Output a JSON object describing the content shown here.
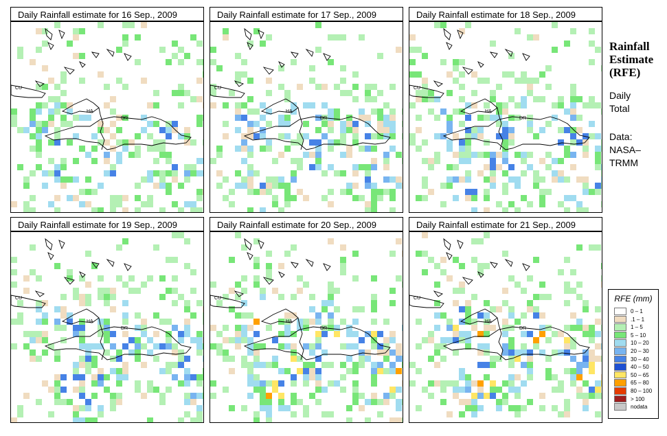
{
  "panels": [
    {
      "title": "Daily Rainfall estimate for  16 Sep., 2009",
      "day": 16
    },
    {
      "title": "Daily Rainfall estimate for  17 Sep., 2009",
      "day": 17
    },
    {
      "title": "Daily Rainfall estimate for  18 Sep., 2009",
      "day": 18
    },
    {
      "title": "Daily Rainfall estimate for  19 Sep., 2009",
      "day": 19
    },
    {
      "title": "Daily Rainfall estimate for  20 Sep., 2009",
      "day": 20
    },
    {
      "title": "Daily Rainfall estimate for  21 Sep., 2009",
      "day": 21
    }
  ],
  "map_labels": {
    "cuba": "CU",
    "haiti": "HA",
    "dominican_republic": "DR"
  },
  "side": {
    "title_line1": "Rainfall",
    "title_line2": "Estimate",
    "title_line3": "(RFE)",
    "period_line1": "Daily",
    "period_line2": "Total",
    "source_line1": "Data:",
    "source_line2": "NASA–",
    "source_line3": "TRMM"
  },
  "legend": {
    "title": "RFE (mm)",
    "items": [
      {
        "label": "0 – 1",
        "color": "#ffffff"
      },
      {
        "label": ".1 – 1",
        "color": "#f0dcc0"
      },
      {
        "label": "1 – 5",
        "color": "#b4f0b4"
      },
      {
        "label": "5 – 10",
        "color": "#78e678"
      },
      {
        "label": "10 – 20",
        "color": "#a0dcf0"
      },
      {
        "label": "20 – 30",
        "color": "#78b4f0"
      },
      {
        "label": "30 – 40",
        "color": "#4682e6"
      },
      {
        "label": "40 – 50",
        "color": "#1e50d2"
      },
      {
        "label": "50 – 65",
        "color": "#ffe664"
      },
      {
        "label": "65 – 80",
        "color": "#ffa000"
      },
      {
        "label": "80 – 100",
        "color": "#e63c00"
      },
      {
        "label": "> 100",
        "color": "#a01e1e"
      },
      {
        "label": "nodata",
        "color": "#c8c8c8"
      }
    ]
  }
}
